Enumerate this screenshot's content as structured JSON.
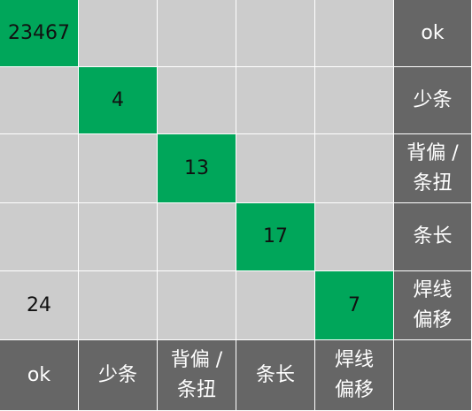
{
  "chart_data": {
    "type": "heatmap",
    "row_labels": [
      "ok",
      "少条",
      "背偏 / 条扭",
      "条长",
      "焊线 偏移"
    ],
    "col_labels": [
      "ok",
      "少条",
      "背偏 / 条扭",
      "条长",
      "焊线 偏移"
    ],
    "values": [
      [
        23467,
        null,
        null,
        null,
        null
      ],
      [
        null,
        4,
        null,
        null,
        null
      ],
      [
        null,
        null,
        13,
        null,
        null
      ],
      [
        null,
        null,
        null,
        17,
        null
      ],
      [
        24,
        null,
        null,
        null,
        7
      ]
    ]
  },
  "colors": {
    "diagonal": "#00a65a",
    "off_diagonal": "#cccccc",
    "header": "#666666",
    "grid_line": "#ffffff"
  }
}
